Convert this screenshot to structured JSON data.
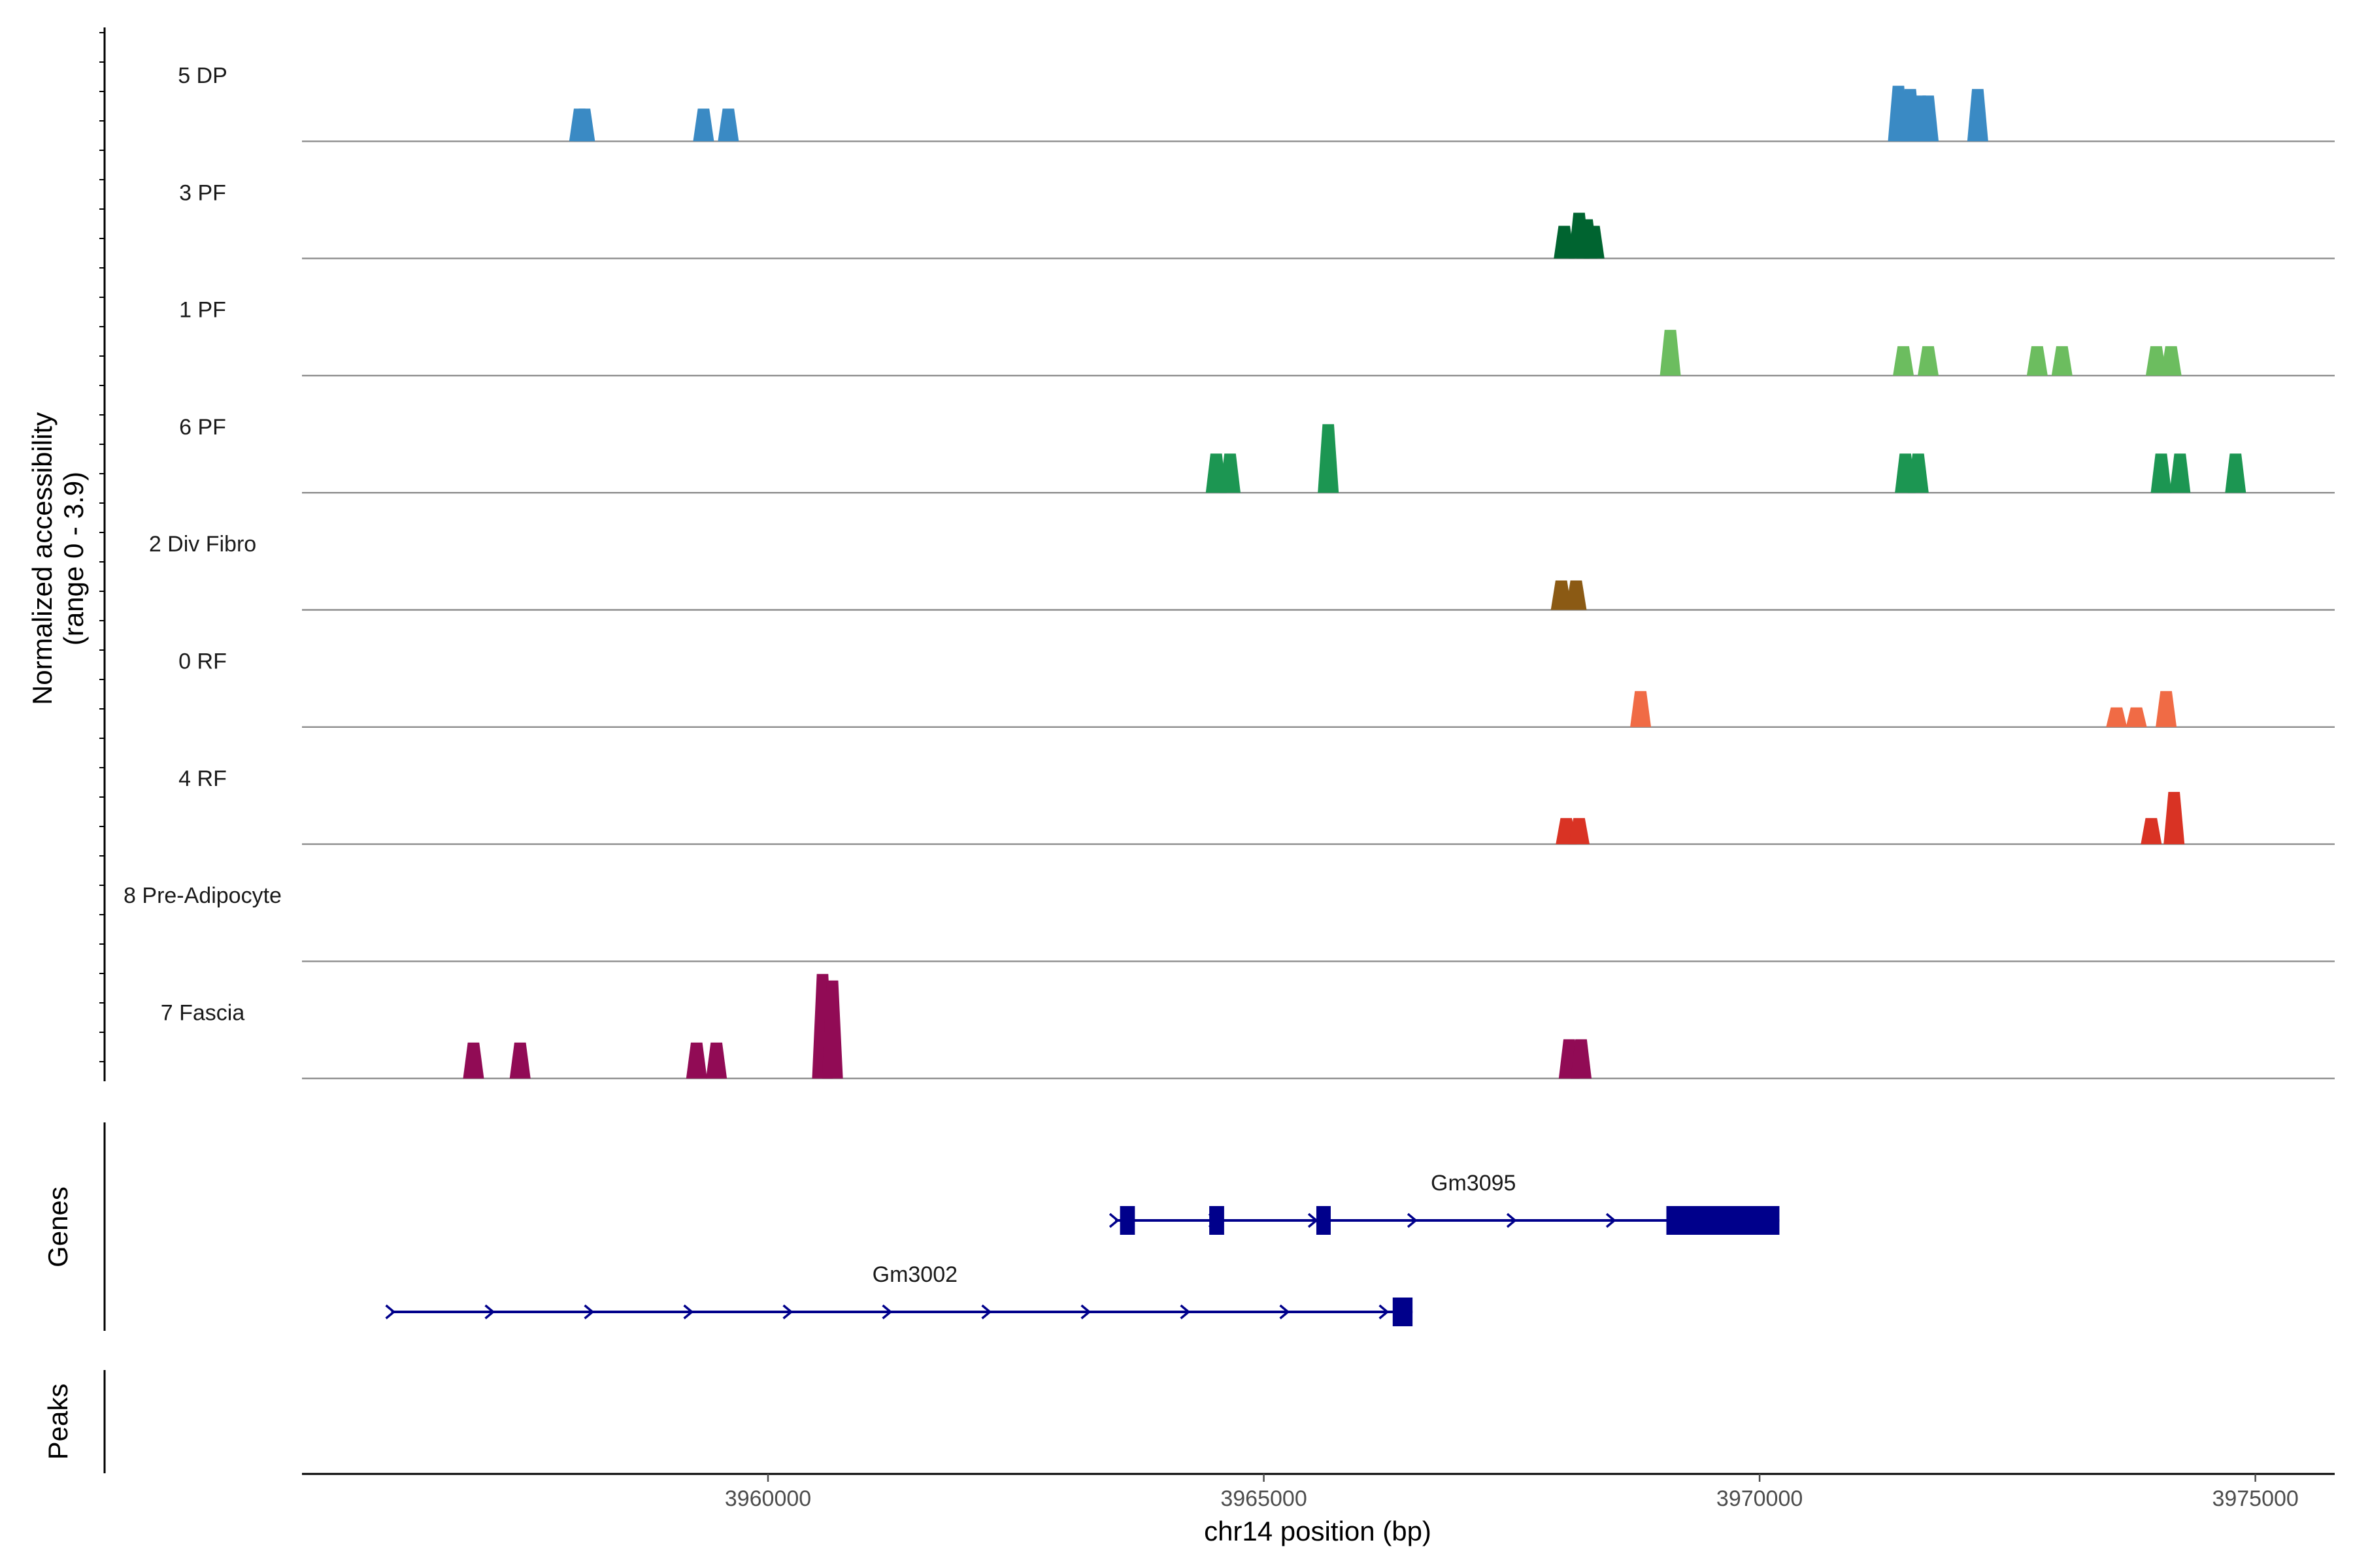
{
  "chart_data": {
    "type": "coverage",
    "chromosome": "chr14",
    "x_range": [
      3955300,
      3975800
    ],
    "y_range": [
      0,
      3.9
    ],
    "xlabel": "chr14 position (bp)",
    "ylabel": [
      "Normalized accessibility",
      "(range 0 - 3.9)"
    ],
    "x_ticks": [
      3960000,
      3965000,
      3970000,
      3975000
    ],
    "x_tick_labels": [
      "3960000",
      "3965000",
      "3970000",
      "3975000"
    ],
    "tracks": [
      {
        "name": "5 DP",
        "color": "#3a8ac4",
        "peaks": [
          [
            3958100,
            1.0
          ],
          [
            3958150,
            1.0
          ],
          [
            3959350,
            1.0
          ],
          [
            3959600,
            1.0
          ],
          [
            3971400,
            1.7
          ],
          [
            3971520,
            1.6
          ],
          [
            3971620,
            1.4
          ],
          [
            3971700,
            1.4
          ],
          [
            3972200,
            1.6
          ]
        ]
      },
      {
        "name": "3 PF",
        "color": "#006430",
        "peaks": [
          [
            3968030,
            1.0
          ],
          [
            3968180,
            1.4
          ],
          [
            3968260,
            1.2
          ],
          [
            3968330,
            1.0
          ]
        ]
      },
      {
        "name": "1 PF",
        "color": "#6cbd5f",
        "peaks": [
          [
            3969100,
            1.4
          ],
          [
            3971450,
            0.9
          ],
          [
            3971700,
            0.9
          ],
          [
            3972800,
            0.9
          ],
          [
            3973050,
            0.9
          ],
          [
            3974000,
            0.9
          ],
          [
            3974150,
            0.9
          ]
        ]
      },
      {
        "name": "6 PF",
        "color": "#1c9652",
        "peaks": [
          [
            3964520,
            1.2
          ],
          [
            3964660,
            1.2
          ],
          [
            3965650,
            2.1
          ],
          [
            3971470,
            1.2
          ],
          [
            3971600,
            1.2
          ],
          [
            3974050,
            1.2
          ],
          [
            3974240,
            1.2
          ],
          [
            3974800,
            1.2
          ]
        ]
      },
      {
        "name": "2 Div Fibro",
        "color": "#8b5a14",
        "peaks": [
          [
            3968000,
            0.9
          ],
          [
            3968150,
            0.9
          ]
        ]
      },
      {
        "name": "0 RF",
        "color": "#f06b45",
        "peaks": [
          [
            3968800,
            1.1
          ],
          [
            3973600,
            0.6
          ],
          [
            3973800,
            0.6
          ],
          [
            3974100,
            1.1
          ]
        ]
      },
      {
        "name": "4 RF",
        "color": "#d93324",
        "peaks": [
          [
            3968050,
            0.8
          ],
          [
            3968180,
            0.8
          ],
          [
            3973950,
            0.8
          ],
          [
            3974180,
            1.6
          ]
        ]
      },
      {
        "name": "8 Pre-Adipocyte",
        "color": "#999999",
        "peaks": []
      },
      {
        "name": "7 Fascia",
        "color": "#910b55",
        "peaks": [
          [
            3957030,
            1.1
          ],
          [
            3957500,
            1.1
          ],
          [
            3959280,
            1.1
          ],
          [
            3959480,
            1.1
          ],
          [
            3960550,
            3.2
          ],
          [
            3960650,
            3.0
          ],
          [
            3968080,
            1.2
          ],
          [
            3968200,
            1.2
          ]
        ]
      }
    ],
    "genes_track_label": "Genes",
    "peaks_track_label": "Peaks",
    "genes": [
      {
        "name": "Gm3095",
        "strand": "+",
        "start": 3963500,
        "end": 3970200,
        "color": "#00008b",
        "exons": [
          [
            3963550,
            3963700
          ],
          [
            3964450,
            3964600
          ],
          [
            3965530,
            3965650
          ],
          [
            3969060,
            3970200
          ]
        ]
      },
      {
        "name": "Gm3002",
        "strand": "+",
        "start": 3956200,
        "end": 3966500,
        "color": "#00008b",
        "exons": [
          [
            3966300,
            3966500
          ]
        ]
      }
    ]
  }
}
